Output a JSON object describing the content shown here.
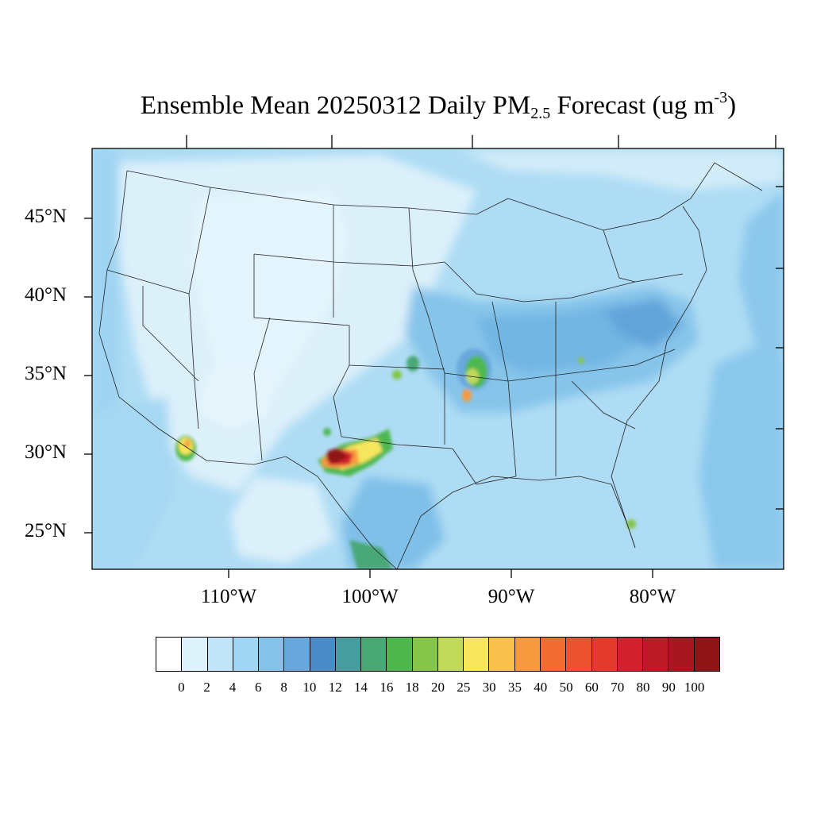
{
  "title": {
    "pre": "Ensemble Mean 20250312 Daily PM",
    "sub": "2.5",
    "mid": " Forecast (ug m",
    "sup": "-3",
    "post": ")"
  },
  "latitude_labels": [
    "45°N",
    "40°N",
    "35°N",
    "30°N",
    "25°N"
  ],
  "longitude_labels": [
    "110°W",
    "100°W",
    "90°W",
    "80°W"
  ],
  "colorbar": {
    "labels": [
      "0",
      "2",
      "4",
      "6",
      "8",
      "10",
      "12",
      "14",
      "16",
      "18",
      "20",
      "25",
      "30",
      "35",
      "40",
      "50",
      "60",
      "70",
      "80",
      "90",
      "100"
    ],
    "colors": [
      "#ffffff",
      "#def2fb",
      "#bfe5f7",
      "#9fd6f3",
      "#84c2e9",
      "#68a8dc",
      "#4a8cc8",
      "#479c9e",
      "#4aa877",
      "#4eb84f",
      "#85c54a",
      "#c1d95a",
      "#f6e65d",
      "#f9bf4c",
      "#f7993f",
      "#f26c33",
      "#eb5230",
      "#e23a2c",
      "#d3202e",
      "#bd1a27",
      "#a8171f",
      "#8f1418"
    ]
  },
  "map": {
    "projection": "Lambert conformal",
    "region": "Continental United States",
    "variable": "PM2.5 daily mean",
    "hotspots": [
      {
        "name": "West Texas",
        "peak_bin": "90-100"
      },
      {
        "name": "Southern Arizona",
        "peak_bin": "30-35"
      },
      {
        "name": "Central Arkansas",
        "peak_bin": "40-50"
      },
      {
        "name": "Southern Kansas",
        "peak_bin": "18-20"
      },
      {
        "name": "South Texas border",
        "peak_bin": "16-18"
      },
      {
        "name": "South Florida",
        "peak_bin": "20-25"
      }
    ]
  }
}
